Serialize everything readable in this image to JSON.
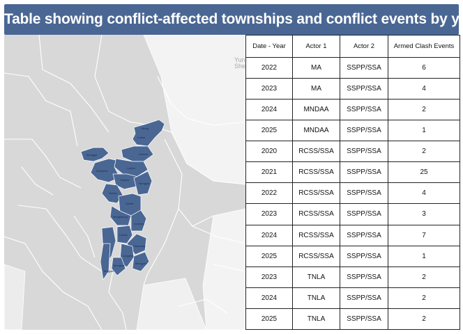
{
  "title": "Table showing conflict-affected townships and conflict events by year",
  "map": {
    "place_label": "Yun\nShe",
    "townships": [
      "Mong",
      "Kutkai",
      "Hsenwi",
      "Lashio",
      "Mongyai",
      "Kyethi",
      "Namtu",
      "Hsipaw",
      "Kyaukme",
      "Mongkaung",
      "Kunhing",
      "Laihka",
      "Namsang",
      "Langkho",
      "Taunggyi",
      "Mongpan",
      "Tangyan",
      "Mongsan"
    ],
    "colors": {
      "highlight": "#4a6794",
      "base": "#d8d8d8",
      "border": "#ffffff",
      "outside": "#f3f3f3"
    }
  },
  "table": {
    "headers": [
      "Date - Year",
      "Actor 1",
      "Actor 2",
      "Armed Clash Events"
    ],
    "rows": [
      [
        "2022",
        "MA",
        "SSPP/SSA",
        "6"
      ],
      [
        "2023",
        "MA",
        "SSPP/SSA",
        "4"
      ],
      [
        "2024",
        "MNDAA",
        "SSPP/SSA",
        "2"
      ],
      [
        "2025",
        "MNDAA",
        "SSPP/SSA",
        "1"
      ],
      [
        "2020",
        "RCSS/SSA",
        "SSPP/SSA",
        "2"
      ],
      [
        "2021",
        "RCSS/SSA",
        "SSPP/SSA",
        "25"
      ],
      [
        "2022",
        "RCSS/SSA",
        "SSPP/SSA",
        "4"
      ],
      [
        "2023",
        "RCSS/SSA",
        "SSPP/SSA",
        "3"
      ],
      [
        "2024",
        "RCSS/SSA",
        "SSPP/SSA",
        "7"
      ],
      [
        "2025",
        "RCSS/SSA",
        "SSPP/SSA",
        "1"
      ],
      [
        "2023",
        "TNLA",
        "SSPP/SSA",
        "2"
      ],
      [
        "2024",
        "TNLA",
        "SSPP/SSA",
        "2"
      ],
      [
        "2025",
        "TNLA",
        "SSPP/SSA",
        "2"
      ]
    ]
  }
}
